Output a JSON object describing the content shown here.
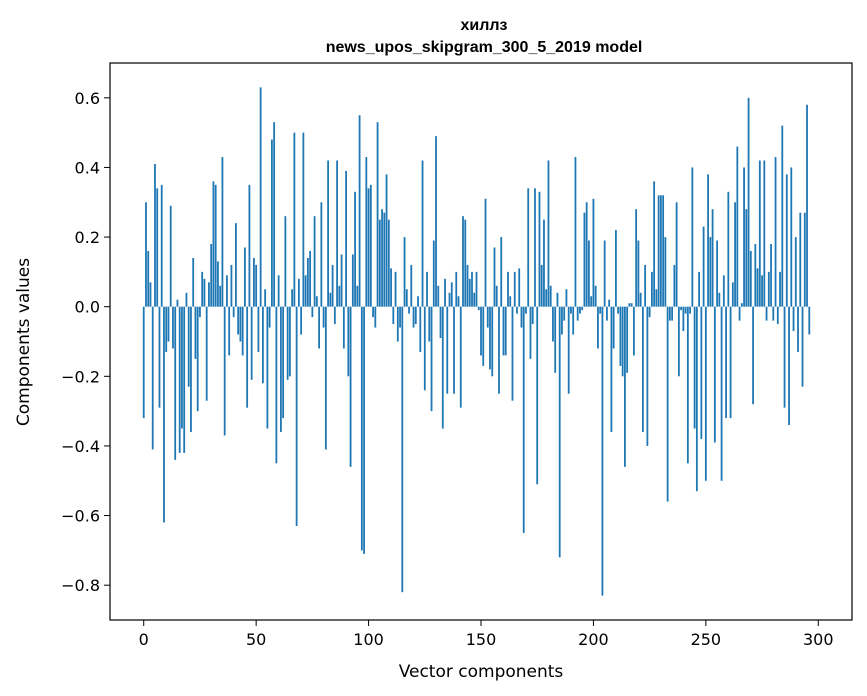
{
  "chart_data": {
    "type": "bar",
    "title": "хиллз",
    "subtitle": "news_upos_skipgram_300_5_2019 model",
    "xlabel": "Vector components",
    "ylabel": "Components values",
    "xlim": [
      -15,
      315
    ],
    "ylim": [
      -0.9,
      0.7
    ],
    "xticks": [
      0,
      50,
      100,
      150,
      200,
      250,
      300
    ],
    "xtick_labels": [
      "0",
      "50",
      "100",
      "150",
      "200",
      "250",
      "300"
    ],
    "yticks": [
      -0.8,
      -0.6,
      -0.4,
      -0.2,
      0.0,
      0.2,
      0.4,
      0.6
    ],
    "ytick_labels": [
      "−0.8",
      "−0.6",
      "−0.4",
      "−0.2",
      "0.0",
      "0.2",
      "0.4",
      "0.6"
    ],
    "grid": false,
    "bar_color": "#1f77b4",
    "values": [
      -0.32,
      0.3,
      0.16,
      0.07,
      -0.41,
      0.41,
      0.34,
      -0.29,
      0.35,
      -0.62,
      -0.13,
      -0.1,
      0.29,
      -0.12,
      -0.44,
      0.02,
      -0.42,
      -0.35,
      -0.42,
      0.04,
      -0.23,
      -0.36,
      0.14,
      -0.15,
      -0.3,
      -0.03,
      0.1,
      0.08,
      -0.27,
      0.07,
      0.18,
      0.36,
      0.35,
      0.13,
      0.06,
      0.43,
      -0.37,
      0.09,
      -0.14,
      0.12,
      -0.03,
      0.24,
      -0.08,
      -0.1,
      -0.14,
      0.17,
      -0.29,
      0.35,
      -0.21,
      0.14,
      0.12,
      -0.13,
      0.63,
      -0.22,
      0.05,
      -0.35,
      -0.06,
      0.48,
      0.53,
      -0.45,
      0.09,
      -0.36,
      -0.32,
      0.26,
      -0.21,
      -0.2,
      0.05,
      0.5,
      -0.63,
      0.08,
      -0.08,
      0.5,
      0.09,
      0.14,
      0.16,
      -0.03,
      0.26,
      0.03,
      -0.12,
      0.3,
      -0.06,
      -0.41,
      0.42,
      0.04,
      0.12,
      -0.05,
      0.42,
      0.06,
      0.15,
      -0.12,
      0.39,
      -0.2,
      -0.46,
      0.15,
      0.33,
      0.06,
      0.55,
      -0.7,
      -0.71,
      0.43,
      0.34,
      0.35,
      -0.03,
      -0.06,
      0.53,
      0.25,
      0.28,
      0.27,
      0.38,
      0.25,
      0.11,
      -0.05,
      0.1,
      -0.1,
      -0.06,
      -0.82,
      0.2,
      0.05,
      -0.02,
      0.12,
      -0.06,
      -0.05,
      0.03,
      -0.13,
      0.42,
      -0.24,
      0.1,
      -0.1,
      -0.3,
      0.19,
      0.49,
      0.06,
      -0.09,
      -0.35,
      0.08,
      -0.25,
      0.04,
      0.07,
      -0.25,
      0.1,
      0.03,
      -0.29,
      0.26,
      0.25,
      0.12,
      0.08,
      0.1,
      0.04,
      0.1,
      -0.01,
      -0.14,
      -0.17,
      0.31,
      -0.06,
      -0.18,
      -0.2,
      0.17,
      0.06,
      -0.25,
      0.2,
      -0.14,
      -0.14,
      0.1,
      0.03,
      -0.27,
      0.1,
      -0.02,
      0.11,
      -0.06,
      -0.65,
      -0.02,
      0.34,
      -0.15,
      -0.05,
      0.34,
      -0.51,
      0.33,
      0.12,
      0.25,
      0.05,
      0.42,
      0.06,
      -0.1,
      -0.19,
      0.04,
      -0.72,
      -0.08,
      -0.04,
      0.05,
      -0.25,
      -0.02,
      -0.08,
      0.43,
      -0.04,
      -0.02,
      -0.01,
      0.27,
      0.3,
      0.19,
      0.03,
      0.31,
      0.06,
      -0.12,
      -0.02,
      -0.83,
      0.19,
      -0.04,
      0.02,
      -0.36,
      -0.12,
      0.22,
      -0.02,
      -0.17,
      -0.2,
      -0.46,
      -0.19,
      0.01,
      0.01,
      -0.14,
      0.28,
      0.19,
      0.04,
      -0.36,
      0.12,
      -0.4,
      -0.03,
      0.1,
      0.36,
      0.05,
      0.32,
      0.32,
      0.32,
      0.2,
      -0.56,
      -0.04,
      -0.04,
      0.12,
      0.3,
      -0.2,
      -0.01,
      -0.07,
      -0.02,
      -0.45,
      -0.02,
      0.4,
      -0.35,
      -0.53,
      0.1,
      -0.38,
      0.23,
      -0.5,
      0.38,
      0.2,
      0.28,
      -0.39,
      0.19,
      0.04,
      -0.5,
      0.09,
      -0.32,
      0.33,
      -0.32,
      0.07,
      0.3,
      0.46,
      -0.04,
      0.01,
      0.4,
      0.28,
      0.6,
      0.16,
      -0.28,
      0.18,
      0.11,
      0.42,
      0.09,
      0.42,
      -0.04,
      0.1,
      0.18,
      -0.04,
      0.43,
      -0.05,
      0.1,
      0.52,
      -0.29,
      0.38,
      -0.34,
      0.4,
      -0.07,
      0.2,
      -0.13,
      0.27,
      -0.23,
      0.27,
      0.58,
      -0.08
    ]
  }
}
